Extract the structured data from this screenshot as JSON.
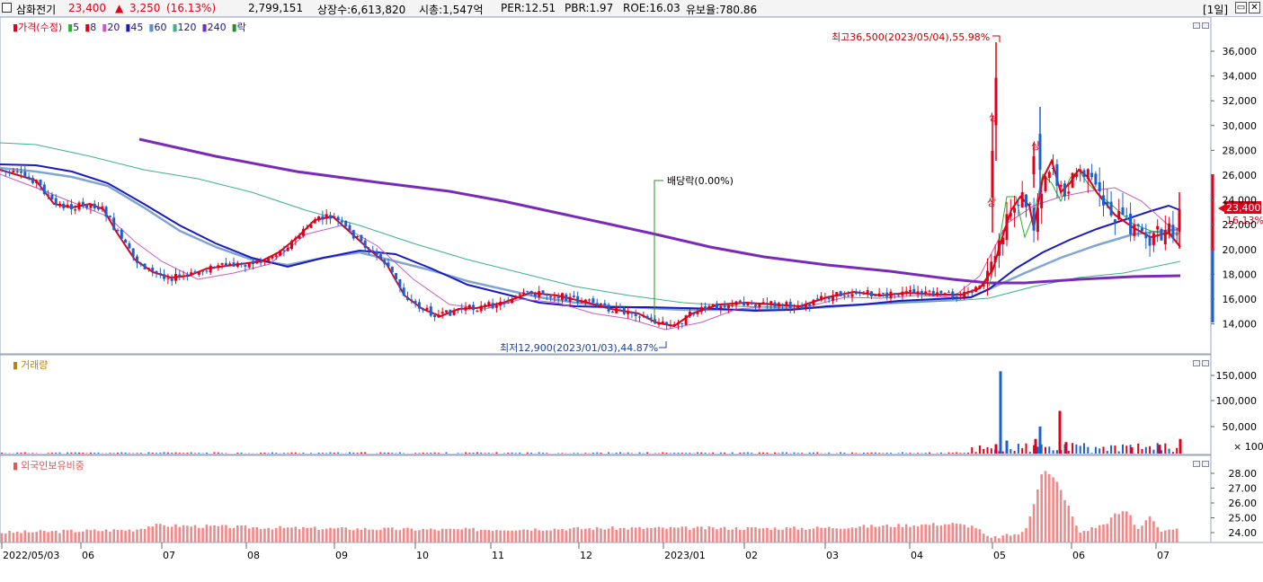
{
  "header": {
    "stock_name": "삼화전기",
    "price": "23,400",
    "change_arrow": "▲",
    "change": "3,250",
    "change_pct": "(16.13%)",
    "volume": "2,799,151",
    "listed_shares": "상장수:6,613,820",
    "market_cap": "시총:1,547억",
    "per": "PER:12.51",
    "pbr": "PBR:1.97",
    "roe": "ROE:16.03",
    "float_ratio": "유보율:780.86",
    "period": "[1일]",
    "accent_up": "#e0001a",
    "accent_down": "#1c5fd0"
  },
  "price_panel": {
    "legend": [
      {
        "label": "가격(수정)",
        "color": "#e0001a"
      },
      {
        "label": "5",
        "color": "#2ab22a"
      },
      {
        "label": "8",
        "color": "#e0001a"
      },
      {
        "label": "20",
        "color": "#c85ac8"
      },
      {
        "label": "45",
        "color": "#1a1ac0"
      },
      {
        "label": "60",
        "color": "#5f8ec8"
      },
      {
        "label": "120",
        "color": "#3cb08c"
      },
      {
        "label": "240",
        "color": "#7a2ab8"
      },
      {
        "label": "락",
        "color": "#2e8b2e"
      }
    ],
    "annotations": {
      "high": "최고36,500(2023/05/04),55.98%",
      "low": "최저12,900(2023/01/03),44.87%",
      "dividend": "배당락(0.00%)",
      "limit_up": "상"
    },
    "current_price_tag": "23,400",
    "current_pct_tag": "16.13%",
    "y_ticks": [
      "36,000",
      "34,000",
      "32,000",
      "30,000",
      "28,000",
      "26,000",
      "24,000",
      "22,000",
      "20,000",
      "18,000",
      "16,000",
      "14,000"
    ]
  },
  "volume_panel": {
    "legend": "거래량",
    "legend_color": "#b8860b",
    "y_ticks": [
      "150,000",
      "100,000",
      "50,000"
    ],
    "unit": "× 100"
  },
  "foreign_panel": {
    "legend": "외국인보유비중",
    "legend_color": "#e05a5a",
    "y_ticks": [
      "28.00",
      "27.00",
      "26.00",
      "25.00",
      "24.00"
    ]
  },
  "x_axis": [
    "2022/05/03",
    "06",
    "07",
    "08",
    "09",
    "10",
    "11",
    "12",
    "2023/01",
    "02",
    "03",
    "04",
    "05",
    "06",
    "07"
  ],
  "chart_data": {
    "type": "line",
    "title": "",
    "xlabel": "",
    "ylabel": "",
    "ylim": [
      13000,
      37000
    ],
    "x": [
      "2022/05/03",
      "2022/06",
      "2022/07",
      "2022/08",
      "2022/09",
      "2022/10",
      "2022/11",
      "2022/12",
      "2023/01",
      "2023/02",
      "2023/03",
      "2023/04",
      "2023/05",
      "2023/06",
      "2023/07"
    ],
    "series": [
      {
        "name": "가격(수정)",
        "values": [
          26500,
          23000,
          17800,
          18500,
          22500,
          14500,
          15800,
          15300,
          13500,
          16000,
          16500,
          16800,
          30000,
          25000,
          23400
        ]
      },
      {
        "name": "45",
        "values": [
          26800,
          24500,
          19500,
          18200,
          19000,
          17500,
          15600,
          15300,
          15200,
          15200,
          15500,
          16200,
          19500,
          22000,
          23000
        ]
      },
      {
        "name": "240",
        "values": [
          null,
          null,
          29000,
          27500,
          26000,
          24800,
          23600,
          22500,
          21300,
          20000,
          18900,
          18000,
          17500,
          17800,
          18000
        ]
      }
    ],
    "volume": [
      0,
      0,
      0,
      0,
      0,
      0,
      0,
      0,
      0,
      0,
      0,
      0,
      158000,
      80000,
      28000
    ],
    "foreign_ratio": [
      24.0,
      24.2,
      24.4,
      24.2,
      24.2,
      24.1,
      24.2,
      24.2,
      24.2,
      24.3,
      24.3,
      24.4,
      28.2,
      24.0,
      24.8
    ]
  }
}
